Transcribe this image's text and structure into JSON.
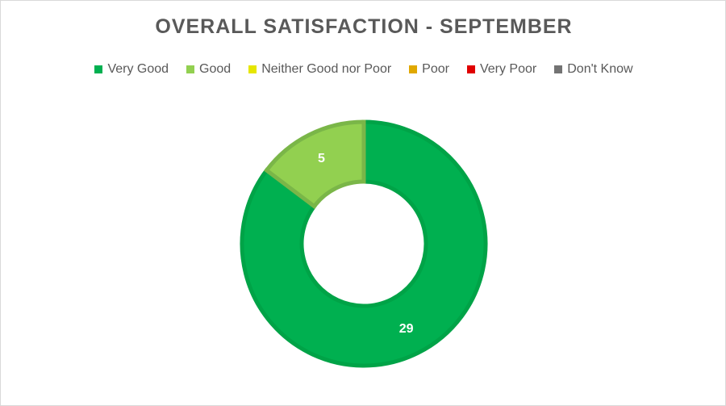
{
  "chart_data": {
    "type": "donut",
    "title": "OVERALL SATISFACTION - SEPTEMBER",
    "legend_position": "top",
    "categories": [
      "Very Good",
      "Good",
      "Neither Good nor Poor",
      "Poor",
      "Very Poor",
      "Don't Know"
    ],
    "values": [
      29,
      5,
      0,
      0,
      0,
      0
    ],
    "colors": [
      "#00b050",
      "#92d050",
      "#e6e600",
      "#e0a800",
      "#e00000",
      "#737373"
    ],
    "border_colors": [
      "#00a347",
      "#7ab648",
      "#cccc00",
      "#c79500",
      "#c00000",
      "#5f5f5f"
    ],
    "data_labels": [
      "29",
      "5",
      "",
      "",
      "",
      ""
    ]
  }
}
